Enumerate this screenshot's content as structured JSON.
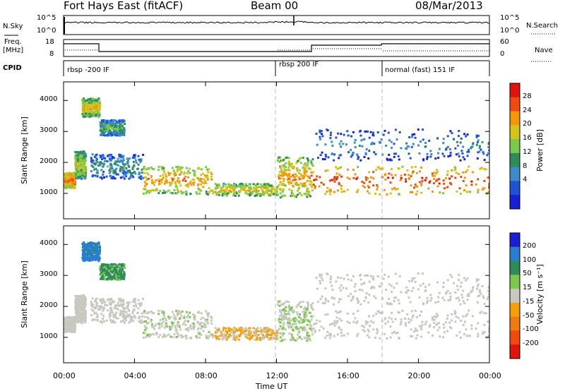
{
  "header": {
    "station": "Fort Hays East (fitACF)",
    "beam": "Beam 00",
    "date": "08/Mar/2013"
  },
  "noise_panel": {
    "left_label": "N.Sky",
    "right_label": "N.Search",
    "left_ticks": [
      "10^5",
      "10^0"
    ],
    "right_ticks": [
      "10^5",
      "10^0"
    ]
  },
  "freq_panel": {
    "left_label_1": "Freq.",
    "left_label_2": "[MHz]",
    "right_label": "Nave",
    "left_ticks": [
      "18",
      "8"
    ],
    "right_ticks": [
      "60",
      "0"
    ]
  },
  "cpid_panel": {
    "label": "CPID",
    "segments": [
      {
        "text": "rbsp -200 IF",
        "start_hour": 0
      },
      {
        "text": "rbsp 200 IF",
        "start_hour": 12
      },
      {
        "text": "normal (fast) 151 IF",
        "start_hour": 18
      }
    ]
  },
  "power_panel": {
    "ylabel": "Slant Range [km]",
    "colorbar_label": "Power [dB]",
    "colorbar_ticks": [
      "28",
      "24",
      "20",
      "16",
      "12",
      "8",
      "4"
    ],
    "colorbar_colors": [
      "#e0140c",
      "#f04a0c",
      "#f5960a",
      "#d4c31a",
      "#7ac94a",
      "#2e8c5a",
      "#3c8ccb",
      "#2052d6",
      "#1a1fd6"
    ]
  },
  "velocity_panel": {
    "ylabel": "Slant Range [km]",
    "colorbar_label": "Velocity [m s⁻¹]",
    "colorbar_ticks": [
      "200",
      "100",
      "50",
      "15",
      "-15",
      "-50",
      "-100",
      "-200"
    ],
    "colorbar_colors": [
      "#1a1fd6",
      "#2a7ed0",
      "#2e8c5a",
      "#7ac94a",
      "#c8c8c0",
      "#f5a00a",
      "#f07a10",
      "#f04a0c",
      "#e0140c"
    ]
  },
  "x_axis": {
    "label": "Time UT",
    "ticks": [
      "00:00",
      "04:00",
      "08:00",
      "12:00",
      "16:00",
      "20:00",
      "00:00"
    ]
  },
  "y_axis_ticks": [
    "4000",
    "3000",
    "2000",
    "1000"
  ],
  "chart_data": {
    "type": "heatmap",
    "title": "Fort Hays East (fitACF)",
    "xlabel": "Time UT",
    "ylabel": "Slant Range [km]",
    "xlim_hours": [
      0,
      24
    ],
    "ylim_km": [
      180,
      4600
    ],
    "cpid_boundaries_hours": [
      12,
      18
    ],
    "power_db_range": [
      0,
      30
    ],
    "velocity_range_ms": [
      -250,
      250
    ],
    "scatter_regions": [
      {
        "t_start": 0.0,
        "t_end": 0.6,
        "r_low": 1200,
        "r_high": 1700,
        "power_db": 20,
        "velocity_ms": 10
      },
      {
        "t_start": 0.6,
        "t_end": 1.2,
        "r_low": 1500,
        "r_high": 2400,
        "power_db": 14,
        "velocity_ms": 5
      },
      {
        "t_start": 1.0,
        "t_end": 2.0,
        "r_low": 3500,
        "r_high": 4100,
        "power_db": 16,
        "velocity_ms": 150
      },
      {
        "t_start": 2.0,
        "t_end": 3.4,
        "r_low": 2900,
        "r_high": 3400,
        "power_db": 10,
        "velocity_ms": 90
      },
      {
        "t_start": 1.5,
        "t_end": 4.5,
        "r_low": 1500,
        "r_high": 2300,
        "power_db": 8,
        "velocity_ms": 5
      },
      {
        "t_start": 4.4,
        "t_end": 8.3,
        "r_low": 1000,
        "r_high": 1900,
        "power_db": 18,
        "velocity_ms": 20
      },
      {
        "t_start": 8.3,
        "t_end": 12.0,
        "r_low": 950,
        "r_high": 1350,
        "power_db": 16,
        "velocity_ms": -30
      },
      {
        "t_start": 12.0,
        "t_end": 14.0,
        "r_low": 900,
        "r_high": 2200,
        "power_db": 18,
        "velocity_ms": 25
      },
      {
        "t_start": 14.0,
        "t_end": 24.0,
        "r_low": 1000,
        "r_high": 1900,
        "power_db": 22,
        "velocity_ms": 0
      },
      {
        "t_start": 14.0,
        "t_end": 24.0,
        "r_low": 2100,
        "r_high": 3100,
        "power_db": 6,
        "velocity_ms": 5
      }
    ]
  }
}
